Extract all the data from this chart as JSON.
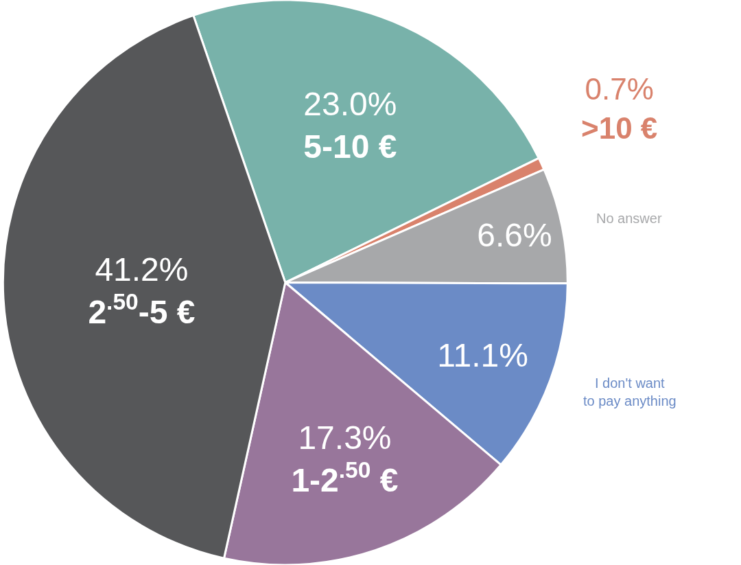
{
  "chart_data": {
    "type": "pie",
    "categories": [
      "5-10 €",
      ">10 €",
      "No answer",
      "I don't want to pay anything",
      "1-2$^{.50}$ €",
      "2$^{.50}$-5 €"
    ],
    "values": [
      23.0,
      0.7,
      6.6,
      11.1,
      17.3,
      41.2
    ],
    "value_labels": [
      "23.0%",
      "0.7%",
      "6.6%",
      "11.1%",
      "17.3%",
      "41.2%"
    ],
    "colors": [
      "#78b2aa",
      "#d9826c",
      "#a7a8aa",
      "#6b8bc6",
      "#98769b",
      "#565759"
    ],
    "legend": false
  }
}
